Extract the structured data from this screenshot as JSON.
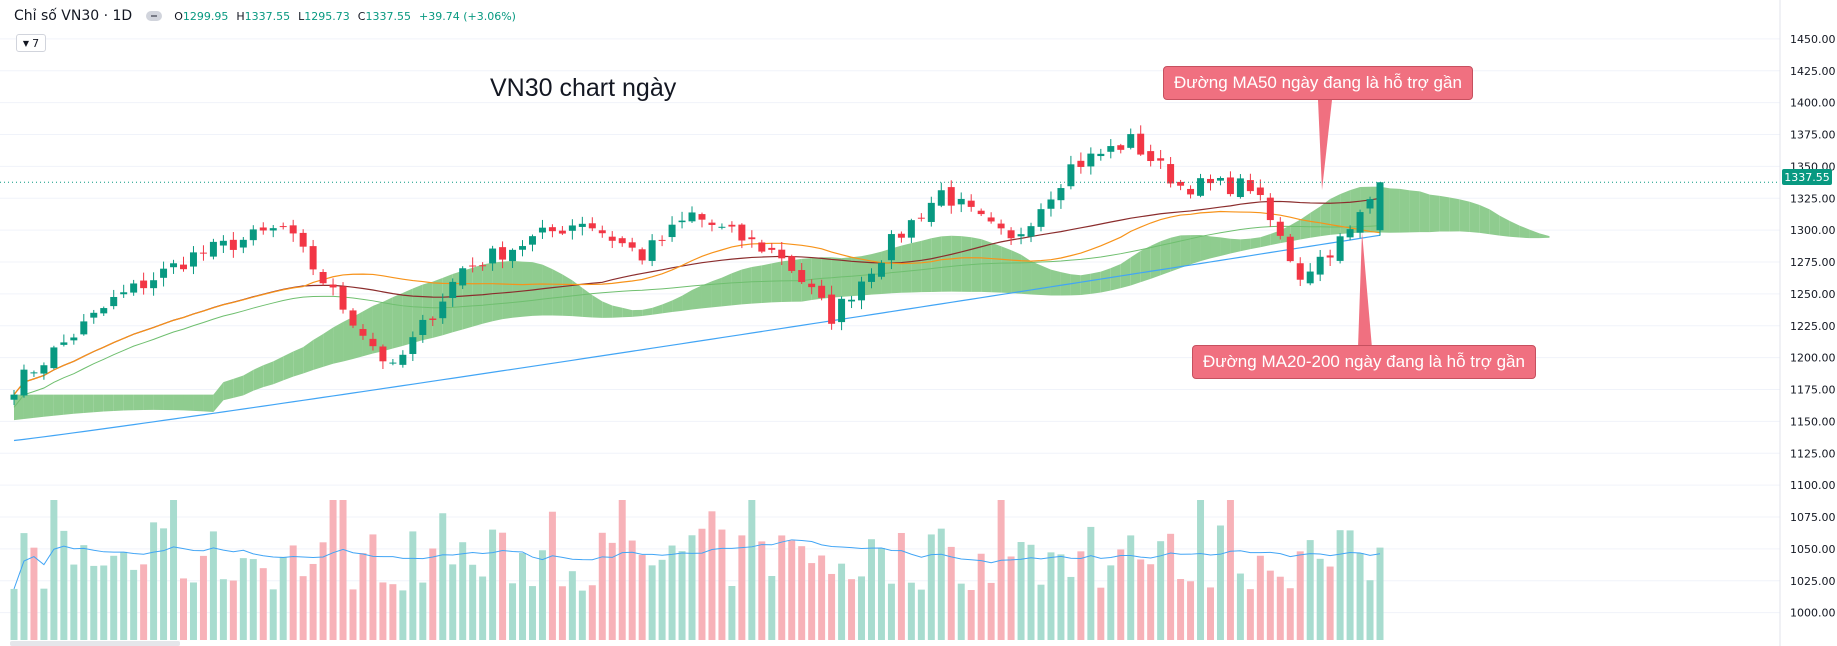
{
  "header": {
    "symbol": "Chỉ số VN30 · 1D",
    "open_label": "O",
    "open_value": "1299.95",
    "high_label": "H",
    "high_value": "1337.55",
    "low_label": "L",
    "low_value": "1295.73",
    "close_label": "C",
    "close_value": "1337.55",
    "change": "+39.74 (+3.06%)",
    "indicators_count": "7"
  },
  "colors": {
    "up": "#089981",
    "down": "#f23645",
    "cloud_bull": "#8fcc8f",
    "cloud_bear": "#f4a6ad",
    "ma_short": "#f7931a",
    "ma_mid": "#8b2d2d",
    "ma_long": "#6fbf6f",
    "ma_200": "#42a5f5",
    "callout": "#f07080"
  },
  "chart_data": {
    "type": "candlestick",
    "title": "VN30 chart ngày",
    "symbol": "Chỉ số VN30",
    "timeframe": "1D",
    "last_price_label": "1337.55",
    "y_ticks": [
      "1450.00",
      "1425.00",
      "1400.00",
      "1375.00",
      "1350.00",
      "1325.00",
      "1300.00",
      "1275.00",
      "1250.00",
      "1225.00",
      "1200.00",
      "1175.00",
      "1150.00",
      "1125.00",
      "1100.00",
      "1075.00",
      "1050.00",
      "1025.00",
      "1000.00"
    ],
    "ylim": [
      995,
      1457
    ],
    "n_bars": 138,
    "key_points": [
      {
        "bar": 0,
        "close": 1178
      },
      {
        "bar": 10,
        "close": 1245
      },
      {
        "bar": 18,
        "close": 1280
      },
      {
        "bar": 27,
        "close": 1302
      },
      {
        "bar": 33,
        "close": 1240
      },
      {
        "bar": 38,
        "close": 1190
      },
      {
        "bar": 45,
        "close": 1270
      },
      {
        "bar": 52,
        "close": 1293
      },
      {
        "bar": 57,
        "close": 1308
      },
      {
        "bar": 63,
        "close": 1280
      },
      {
        "bar": 68,
        "close": 1312
      },
      {
        "bar": 71,
        "close": 1300
      },
      {
        "bar": 77,
        "close": 1280
      },
      {
        "bar": 82,
        "close": 1232
      },
      {
        "bar": 88,
        "close": 1290
      },
      {
        "bar": 93,
        "close": 1330
      },
      {
        "bar": 100,
        "close": 1290
      },
      {
        "bar": 106,
        "close": 1350
      },
      {
        "bar": 112,
        "close": 1370
      },
      {
        "bar": 117,
        "close": 1335
      },
      {
        "bar": 124,
        "close": 1335
      },
      {
        "bar": 129,
        "close": 1265
      },
      {
        "bar": 134,
        "close": 1298
      },
      {
        "bar": 137,
        "close": 1337.55
      }
    ],
    "ma20_at_end": 1298,
    "ma50_at_end": 1325,
    "ma200_at_end": 1296,
    "volume_ma_label": "volume",
    "annotations": [
      {
        "text": "Đường MA50 ngày đang là hỗ trợ gần",
        "points_to": "MA50"
      },
      {
        "text": "Đường MA20-200 ngày đang là hỗ trợ gần",
        "points_to": "MA20-MA200"
      }
    ]
  }
}
